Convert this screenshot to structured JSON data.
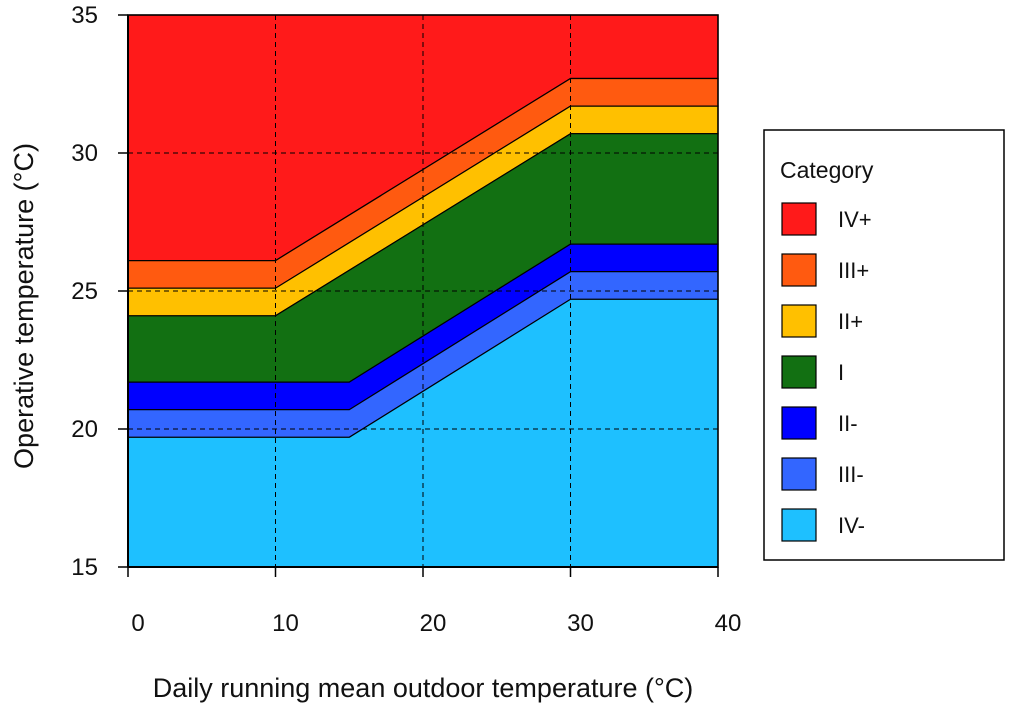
{
  "chart_data": {
    "type": "area",
    "title": "",
    "xlabel": "Daily running mean outdoor temperature (°C)",
    "ylabel": "Operative temperature (°C)",
    "xlim": [
      0,
      40
    ],
    "ylim": [
      15,
      35
    ],
    "x_ticks": [
      "0",
      "10",
      "20",
      "30",
      "40"
    ],
    "y_ticks": [
      "15",
      "20",
      "25",
      "30",
      "35"
    ],
    "grid": true,
    "legend": {
      "title": "Category",
      "position": "right",
      "entries": [
        "IV+",
        "III+",
        "II+",
        "I",
        "II-",
        "III-",
        "IV-"
      ]
    },
    "boundaries": [
      {
        "name": "IV-/III- lower limit",
        "points": [
          [
            0,
            19.7
          ],
          [
            15,
            19.7
          ],
          [
            30,
            24.7
          ],
          [
            40,
            24.7
          ]
        ]
      },
      {
        "name": "III-/II- lower limit",
        "points": [
          [
            0,
            20.7
          ],
          [
            15,
            20.7
          ],
          [
            30,
            25.7
          ],
          [
            40,
            25.7
          ]
        ]
      },
      {
        "name": "II-/I lower limit",
        "points": [
          [
            0,
            21.7
          ],
          [
            15,
            21.7
          ],
          [
            30,
            26.7
          ],
          [
            40,
            26.7
          ]
        ]
      },
      {
        "name": "I/II+ upper limit",
        "points": [
          [
            0,
            24.1
          ],
          [
            10,
            24.1
          ],
          [
            30,
            30.7
          ],
          [
            40,
            30.7
          ]
        ]
      },
      {
        "name": "II+/III+ upper limit",
        "points": [
          [
            0,
            25.1
          ],
          [
            10,
            25.1
          ],
          [
            30,
            31.7
          ],
          [
            40,
            31.7
          ]
        ]
      },
      {
        "name": "III+/IV+ upper limit",
        "points": [
          [
            0,
            26.1
          ],
          [
            10,
            26.1
          ],
          [
            30,
            32.7
          ],
          [
            40,
            32.7
          ]
        ]
      }
    ],
    "series": [
      {
        "name": "IV+",
        "color": "#ff1a1a",
        "lower_boundary": 5,
        "upper": "top"
      },
      {
        "name": "III+",
        "color": "#ff5a10",
        "lower_boundary": 4,
        "upper_boundary": 5
      },
      {
        "name": "II+",
        "color": "#ffc000",
        "lower_boundary": 3,
        "upper_boundary": 4
      },
      {
        "name": "I",
        "color": "#127012",
        "lower_boundary": 2,
        "upper_boundary": 3
      },
      {
        "name": "II-",
        "color": "#0000ff",
        "lower_boundary": 1,
        "upper_boundary": 2
      },
      {
        "name": "III-",
        "color": "#3366ff",
        "lower_boundary": 0,
        "upper_boundary": 1
      },
      {
        "name": "IV-",
        "color": "#1ec0ff",
        "lower": "bottom",
        "upper_boundary": 0
      }
    ]
  }
}
